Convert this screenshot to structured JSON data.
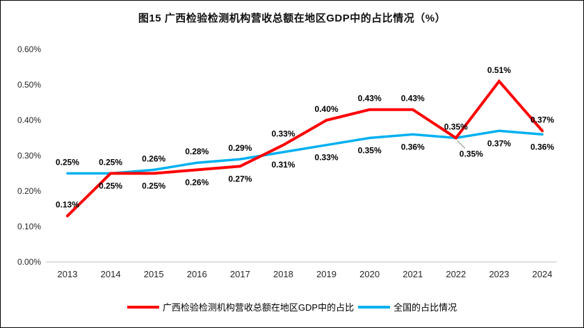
{
  "figure": {
    "title": "图15 广西检验检测机构营收总额在地区GDP中的占比情况（%）"
  },
  "chart_data": {
    "type": "line",
    "title": "图15 广西检验检测机构营收总额在地区GDP中的占比情况（%）",
    "categories": [
      "2013",
      "2014",
      "2015",
      "2016",
      "2017",
      "2018",
      "2019",
      "2020",
      "2021",
      "2022",
      "2023",
      "2024"
    ],
    "series": [
      {
        "name": "广西检验检测机构营收总额在地区GDP中的占比",
        "color": "#FF0000",
        "stroke_width": 4,
        "values": [
          0.13,
          0.25,
          0.25,
          0.26,
          0.27,
          0.33,
          0.4,
          0.43,
          0.43,
          0.35,
          0.51,
          0.37
        ],
        "labels": [
          "0.13%",
          "0.25%",
          "0.25%",
          "0.26%",
          "0.27%",
          "0.33%",
          "0.40%",
          "0.43%",
          "0.43%",
          "0.35%",
          "0.51%",
          "0.37%"
        ],
        "label_side": [
          "above",
          "below",
          "below",
          "below",
          "below",
          "above",
          "above",
          "above",
          "above",
          "above",
          "above",
          "above"
        ]
      },
      {
        "name": "全国的占比情况",
        "color": "#00B0F0",
        "stroke_width": 3.5,
        "values": [
          0.25,
          0.25,
          0.26,
          0.28,
          0.29,
          0.31,
          0.33,
          0.35,
          0.36,
          0.35,
          0.37,
          0.36
        ],
        "labels": [
          "0.25%",
          "0.25%",
          "0.26%",
          "0.28%",
          "0.29%",
          "0.31%",
          "0.33%",
          "0.35%",
          "0.36%",
          "0.35%",
          "0.37%",
          "0.36%"
        ],
        "label_side": [
          "above",
          "above",
          "above",
          "above",
          "above",
          "below",
          "below",
          "below",
          "below",
          "leader",
          "below",
          "below"
        ]
      }
    ],
    "y_ticks": [
      "0.00%",
      "0.10%",
      "0.20%",
      "0.30%",
      "0.40%",
      "0.50%",
      "0.60%"
    ],
    "y_tick_values": [
      0,
      0.1,
      0.2,
      0.3,
      0.4,
      0.5,
      0.6
    ],
    "ylim": [
      0,
      0.6
    ],
    "grid": false,
    "legend_position": "bottom",
    "leader_line_color": "#A6A6A6",
    "axis_line_color": "#BFBFBF"
  }
}
